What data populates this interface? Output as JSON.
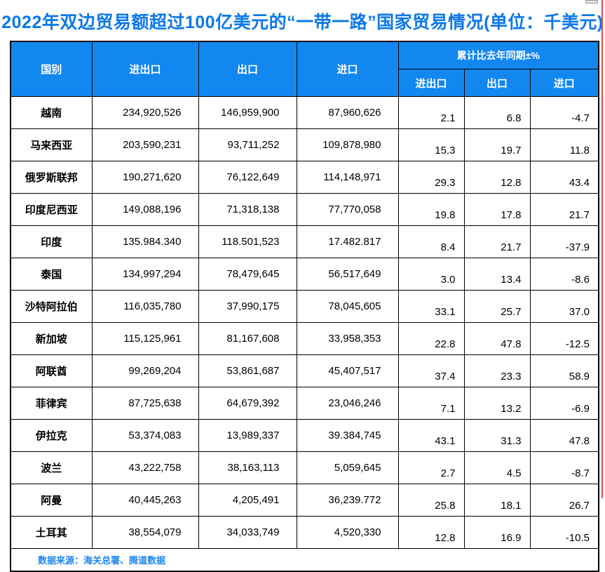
{
  "page": {
    "background": "#ffffff",
    "red_line_color": "#e04848",
    "scrollbar_color": "#e2e2e2"
  },
  "title": {
    "text": "2022年双边贸易额超过100亿美元的“一带一路”国家贸易情况(单位：千美元)",
    "color": "#0c78e8"
  },
  "header": {
    "bg": "#1287f0",
    "country": "国别",
    "total": "进出口",
    "export": "出口",
    "import": "进口",
    "yoy_group": "累计比去年同期±%",
    "yoy_total": "进出口",
    "yoy_export": "出口",
    "yoy_import": "进口"
  },
  "footer": {
    "source": "数据来源：海关总署、腾道数据",
    "color": "#1e86ea"
  },
  "chart_data": {
    "type": "table",
    "title": "2022年双边贸易额超过100亿美元的“一带一路”国家贸易情况",
    "unit": "千美元",
    "columns": [
      "国别",
      "进出口",
      "出口",
      "进口",
      "累计比去年同期±% 进出口",
      "累计比去年同期±% 出口",
      "累计比去年同期±% 进口"
    ],
    "rows": [
      {
        "country": "越南",
        "total": "234,920,526",
        "export": "146,959,900",
        "import": "87,960,626",
        "yoy_total": "2.1",
        "yoy_export": "6.8",
        "yoy_import": "-4.7"
      },
      {
        "country": "马来西亚",
        "total": "203,590,231",
        "export": "93,711,252",
        "import": "109,878,980",
        "yoy_total": "15.3",
        "yoy_export": "19.7",
        "yoy_import": "11.8"
      },
      {
        "country": "俄罗斯联邦",
        "total": "190,271,620",
        "export": "76,122,649",
        "import": "114,148,971",
        "yoy_total": "29.3",
        "yoy_export": "12.8",
        "yoy_import": "43.4"
      },
      {
        "country": "印度尼西亚",
        "total": "149,088,196",
        "export": "71,318,138",
        "import": "77,770,058",
        "yoy_total": "19.8",
        "yoy_export": "17.8",
        "yoy_import": "21.7"
      },
      {
        "country": "印度",
        "total": "135.984.340",
        "export": "118.501,523",
        "import": "17.482.817",
        "yoy_total": "8.4",
        "yoy_export": "21.7",
        "yoy_import": "-37.9"
      },
      {
        "country": "泰国",
        "total": "134,997,294",
        "export": "78,479,645",
        "import": "56,517,649",
        "yoy_total": "3.0",
        "yoy_export": "13.4",
        "yoy_import": "-8.6"
      },
      {
        "country": "沙特阿拉伯",
        "total": "116,035,780",
        "export": "37,990,175",
        "import": "78,045,605",
        "yoy_total": "33.1",
        "yoy_export": "25.7",
        "yoy_import": "37.0"
      },
      {
        "country": "新加坡",
        "total": "115,125,961",
        "export": "81,167,608",
        "import": "33,958,353",
        "yoy_total": "22.8",
        "yoy_export": "47.8",
        "yoy_import": "-12.5"
      },
      {
        "country": "阿联酋",
        "total": "99,269,204",
        "export": "53,861,687",
        "import": "45,407,517",
        "yoy_total": "37.4",
        "yoy_export": "23.3",
        "yoy_import": "58.9"
      },
      {
        "country": "菲律宾",
        "total": "87,725,638",
        "export": "64,679,392",
        "import": "23,046,246",
        "yoy_total": "7.1",
        "yoy_export": "13.2",
        "yoy_import": "-6.9"
      },
      {
        "country": "伊拉克",
        "total": "53,374,083",
        "export": "13,989,337",
        "import": "39.384,745",
        "yoy_total": "43.1",
        "yoy_export": "31.3",
        "yoy_import": "47.8"
      },
      {
        "country": "波兰",
        "total": "43,222,758",
        "export": "38,163,113",
        "import": "5,059,645",
        "yoy_total": "2.7",
        "yoy_export": "4.5",
        "yoy_import": "-8.7"
      },
      {
        "country": "阿曼",
        "total": "40,445,263",
        "export": "4,205,491",
        "import": "36,239.772",
        "yoy_total": "25.8",
        "yoy_export": "18.1",
        "yoy_import": "26.7"
      },
      {
        "country": "土耳其",
        "total": "38,554,079",
        "export": "34,033,749",
        "import": "4,520,330",
        "yoy_total": "12.8",
        "yoy_export": "16.9",
        "yoy_import": "-10.5"
      }
    ],
    "source": "海关总署、腾道数据"
  }
}
